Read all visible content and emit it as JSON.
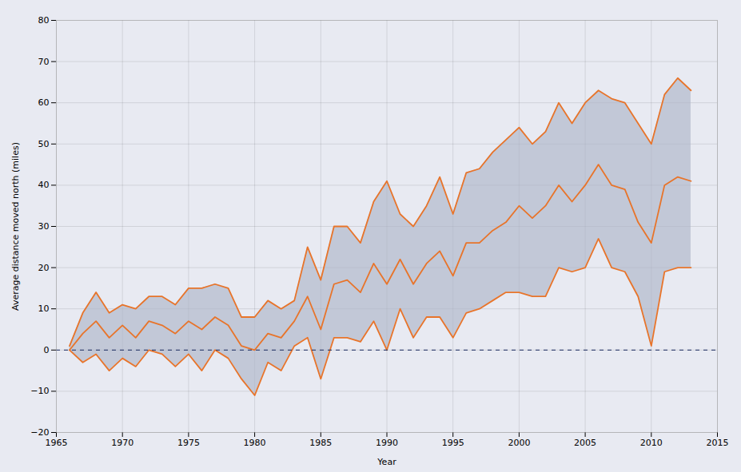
{
  "chart_data": {
    "type": "line",
    "xlabel": "Year",
    "ylabel": "Average distance moved north (miles)",
    "x": [
      1966,
      1967,
      1968,
      1969,
      1970,
      1971,
      1972,
      1973,
      1974,
      1975,
      1976,
      1977,
      1978,
      1979,
      1980,
      1981,
      1982,
      1983,
      1984,
      1985,
      1986,
      1987,
      1988,
      1989,
      1990,
      1991,
      1992,
      1993,
      1994,
      1995,
      1996,
      1997,
      1998,
      1999,
      2000,
      2001,
      2002,
      2003,
      2004,
      2005,
      2006,
      2007,
      2008,
      2009,
      2010,
      2011,
      2012,
      2013
    ],
    "series": [
      {
        "type": "band",
        "color": "#adb5c8",
        "lower": [
          0,
          -3,
          -1,
          -5,
          -2,
          -4,
          0,
          -1,
          -4,
          -1,
          -5,
          0,
          -2,
          -7,
          -11,
          -3,
          -5,
          1,
          3,
          -7,
          3,
          3,
          2,
          7,
          0,
          10,
          3,
          8,
          8,
          3,
          9,
          10,
          12,
          14,
          14,
          13,
          13,
          20,
          19,
          20,
          27,
          20,
          19,
          13,
          1,
          19,
          20,
          20
        ],
        "upper": [
          1,
          9,
          14,
          9,
          11,
          10,
          13,
          13,
          11,
          15,
          15,
          16,
          15,
          8,
          8,
          12,
          10,
          12,
          25,
          17,
          30,
          30,
          26,
          36,
          41,
          33,
          30,
          35,
          42,
          33,
          43,
          44,
          48,
          51,
          54,
          50,
          53,
          60,
          55,
          60,
          63,
          61,
          60,
          55,
          50,
          62,
          66,
          63
        ]
      },
      {
        "type": "line",
        "color": "#e8742a",
        "values": [
          1,
          9,
          14,
          9,
          11,
          10,
          13,
          13,
          11,
          15,
          15,
          16,
          15,
          8,
          8,
          12,
          10,
          12,
          25,
          17,
          30,
          30,
          26,
          36,
          41,
          33,
          30,
          35,
          42,
          33,
          43,
          44,
          48,
          51,
          54,
          50,
          53,
          60,
          55,
          60,
          63,
          61,
          60,
          55,
          50,
          62,
          66,
          63
        ]
      },
      {
        "type": "line",
        "color": "#e8742a",
        "values": [
          0,
          -3,
          -1,
          -5,
          -2,
          -4,
          0,
          -1,
          -4,
          -1,
          -5,
          0,
          -2,
          -7,
          -11,
          -3,
          -5,
          1,
          3,
          -7,
          3,
          3,
          2,
          7,
          0,
          10,
          3,
          8,
          8,
          3,
          9,
          10,
          12,
          14,
          14,
          13,
          13,
          20,
          19,
          20,
          27,
          20,
          19,
          13,
          1,
          19,
          20,
          20
        ]
      },
      {
        "type": "line",
        "color": "#e8742a",
        "values": [
          0,
          4,
          7,
          3,
          6,
          3,
          7,
          6,
          4,
          7,
          5,
          8,
          6,
          1,
          0,
          4,
          3,
          7,
          13,
          5,
          16,
          17,
          14,
          21,
          16,
          22,
          16,
          21,
          24,
          18,
          26,
          26,
          29,
          31,
          35,
          32,
          35,
          40,
          36,
          40,
          45,
          40,
          39,
          31,
          26,
          40,
          42,
          41
        ]
      }
    ],
    "hlines": [
      {
        "value": 0,
        "color": "#1a2a5e",
        "line_style": "dashed"
      }
    ],
    "xlim": [
      1965,
      2015
    ],
    "ylim": [
      -20,
      80
    ],
    "xticks": [
      1965,
      1970,
      1975,
      1980,
      1985,
      1990,
      1995,
      2000,
      2005,
      2010,
      2015
    ],
    "yticks": [
      -20,
      -10,
      0,
      10,
      20,
      30,
      40,
      50,
      60,
      70,
      80
    ],
    "grid": true
  }
}
